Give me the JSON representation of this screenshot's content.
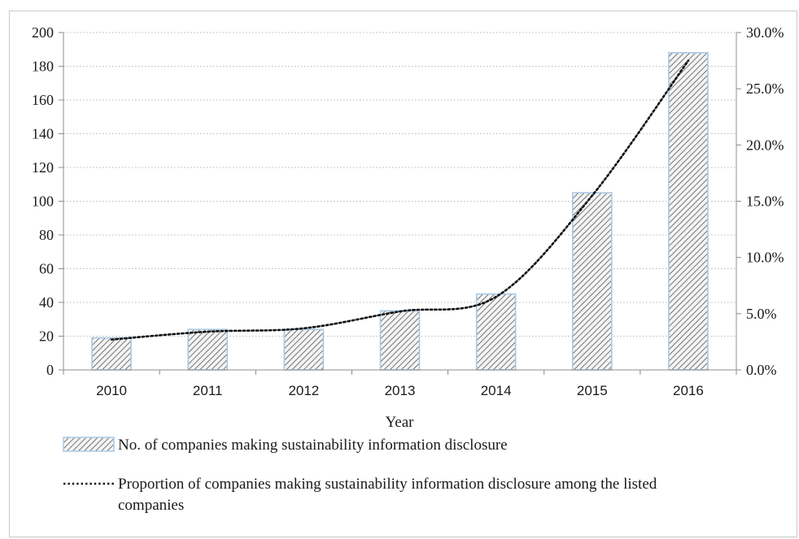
{
  "chart_data": {
    "type": "bar",
    "categories": [
      "2010",
      "2011",
      "2012",
      "2013",
      "2014",
      "2015",
      "2016"
    ],
    "xlabel": "Year",
    "y_left": {
      "ticks": [
        "0",
        "20",
        "40",
        "60",
        "80",
        "100",
        "120",
        "140",
        "160",
        "180",
        "200"
      ],
      "ylim": [
        0,
        200
      ]
    },
    "y_right": {
      "ticks": [
        "0.0%",
        "5.0%",
        "10.0%",
        "15.0%",
        "20.0%",
        "25.0%",
        "30.0%"
      ],
      "ylim": [
        0,
        30
      ]
    },
    "grid": "horizontal dotted",
    "legend_position": "bottom",
    "series": [
      {
        "name": "No. of companies making sustainability information disclosure",
        "type": "bar",
        "axis": "left",
        "values": [
          19,
          24,
          24,
          35,
          45,
          105,
          188
        ]
      },
      {
        "name_lines": [
          "Proportion of companies making sustainability information disclosure among the listed",
          "companies"
        ],
        "type": "line",
        "style": "dotted",
        "axis": "right",
        "values": [
          2.7,
          3.4,
          3.7,
          5.2,
          6.5,
          15.5,
          27.5
        ]
      }
    ],
    "colors": {
      "bar_border": "#a9c8e6",
      "bar_hatch": "#555555",
      "line": "#111111",
      "grid": "#b8b8b8"
    }
  }
}
